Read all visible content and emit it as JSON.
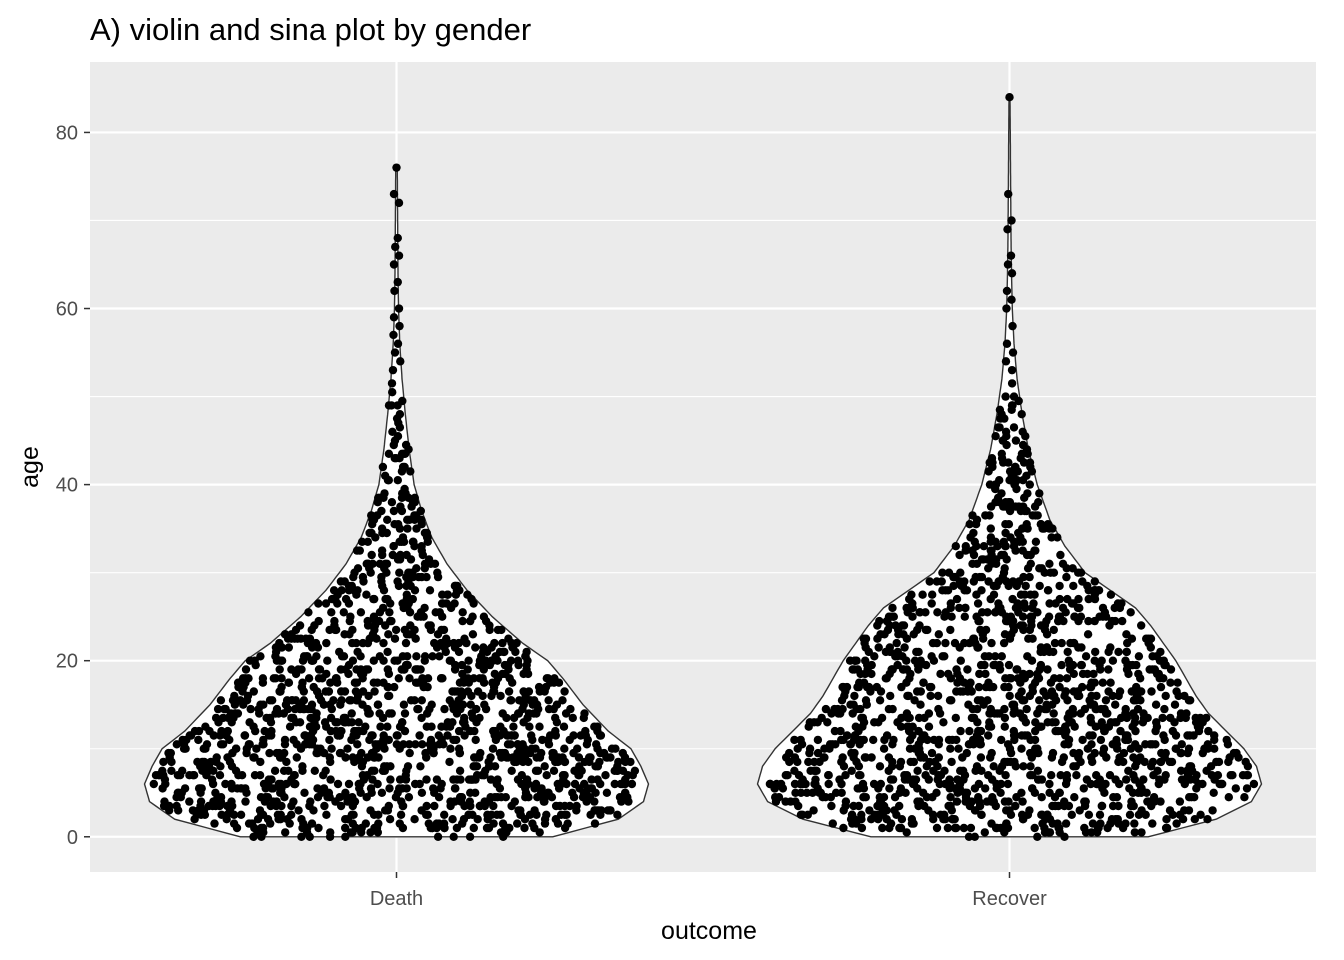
{
  "chart_data": {
    "type": "violin",
    "title": "A) violin and sina plot by gender",
    "xlabel": "outcome",
    "ylabel": "age",
    "categories": [
      "Death",
      "Recover"
    ],
    "ylim": [
      -4,
      88
    ],
    "yticks": [
      0,
      20,
      40,
      60,
      80
    ],
    "grid": true,
    "legend": "none",
    "colors": {
      "panel": "#ebebeb",
      "grid": "#ffffff",
      "violin_fill": "#ffffff",
      "violin_line": "#333333",
      "point": "#000000"
    },
    "series": [
      {
        "category": "Death",
        "max_age": 76,
        "density_profile": [
          [
            0,
            0.62
          ],
          [
            2,
            0.88
          ],
          [
            4,
            0.98
          ],
          [
            6,
            1.0
          ],
          [
            8,
            0.97
          ],
          [
            10,
            0.93
          ],
          [
            12,
            0.84
          ],
          [
            15,
            0.74
          ],
          [
            18,
            0.66
          ],
          [
            20,
            0.6
          ],
          [
            22,
            0.5
          ],
          [
            25,
            0.38
          ],
          [
            28,
            0.28
          ],
          [
            31,
            0.2
          ],
          [
            34,
            0.14
          ],
          [
            37,
            0.1
          ],
          [
            40,
            0.07
          ],
          [
            44,
            0.05
          ],
          [
            48,
            0.035
          ],
          [
            52,
            0.022
          ],
          [
            56,
            0.013
          ],
          [
            60,
            0.008
          ],
          [
            64,
            0.006
          ],
          [
            68,
            0.005
          ],
          [
            72,
            0.004
          ],
          [
            76,
            0.003
          ]
        ],
        "points": [
          [
            76,
            0
          ],
          [
            73,
            -0.01
          ],
          [
            72,
            0.01
          ],
          [
            68,
            0.005
          ],
          [
            67,
            -0.005
          ],
          [
            66,
            0.01
          ],
          [
            65,
            -0.01
          ],
          [
            63,
            0.005
          ],
          [
            62,
            -0.008
          ],
          [
            60,
            0.01
          ],
          [
            59,
            -0.01
          ],
          [
            58,
            0.012
          ],
          [
            57,
            -0.012
          ],
          [
            56,
            0.006
          ],
          [
            55,
            -0.006
          ],
          [
            54,
            0.015
          ],
          [
            53,
            -0.014
          ]
        ]
      },
      {
        "category": "Recover",
        "max_age": 84,
        "density_profile": [
          [
            0,
            0.55
          ],
          [
            2,
            0.82
          ],
          [
            4,
            0.96
          ],
          [
            6,
            1.0
          ],
          [
            8,
            0.98
          ],
          [
            10,
            0.93
          ],
          [
            12,
            0.86
          ],
          [
            14,
            0.79
          ],
          [
            16,
            0.74
          ],
          [
            18,
            0.7
          ],
          [
            20,
            0.66
          ],
          [
            22,
            0.61
          ],
          [
            24,
            0.56
          ],
          [
            26,
            0.5
          ],
          [
            28,
            0.4
          ],
          [
            30,
            0.3
          ],
          [
            33,
            0.22
          ],
          [
            36,
            0.16
          ],
          [
            40,
            0.11
          ],
          [
            44,
            0.075
          ],
          [
            48,
            0.05
          ],
          [
            52,
            0.03
          ],
          [
            56,
            0.018
          ],
          [
            60,
            0.011
          ],
          [
            64,
            0.008
          ],
          [
            68,
            0.006
          ],
          [
            72,
            0.005
          ],
          [
            76,
            0.004
          ],
          [
            80,
            0.003
          ],
          [
            84,
            0.002
          ]
        ],
        "points": [
          [
            84,
            0
          ],
          [
            73,
            -0.005
          ],
          [
            70,
            0.008
          ],
          [
            69,
            -0.008
          ],
          [
            66,
            0.006
          ],
          [
            65,
            -0.006
          ],
          [
            64,
            0.01
          ],
          [
            62,
            -0.01
          ],
          [
            61,
            0.008
          ],
          [
            60,
            -0.012
          ],
          [
            58,
            0.012
          ],
          [
            56,
            -0.01
          ],
          [
            55,
            0.014
          ],
          [
            54,
            -0.014
          ],
          [
            53,
            0.01
          ]
        ]
      }
    ]
  }
}
